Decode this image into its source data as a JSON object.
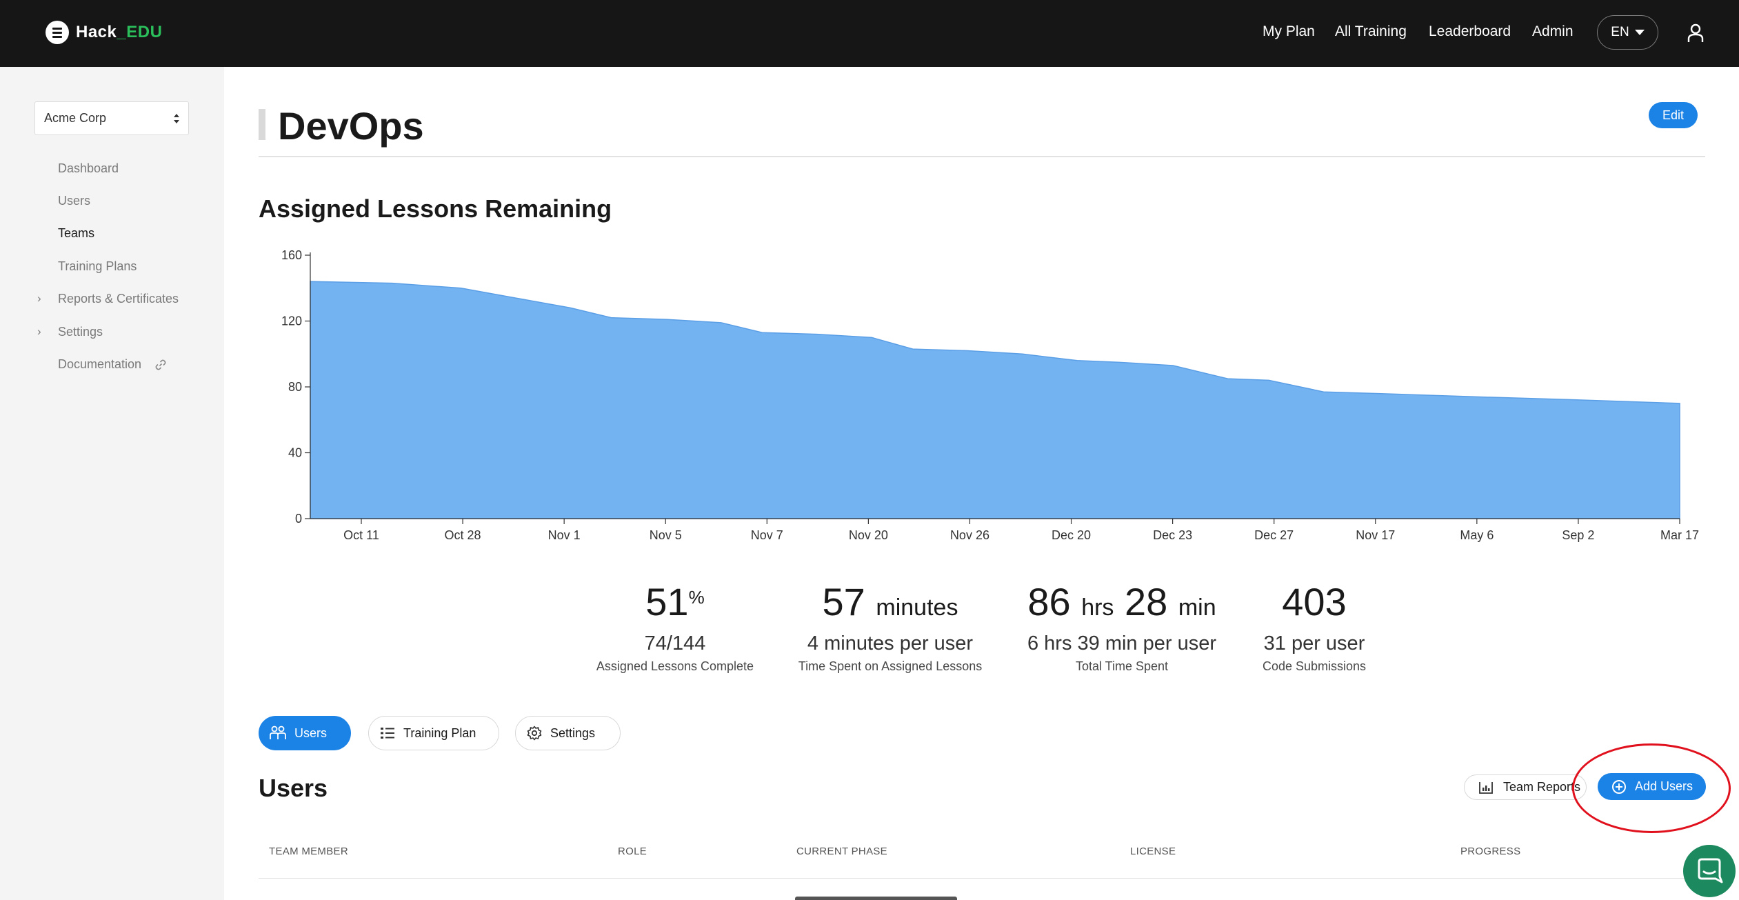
{
  "brand": {
    "name_main": "Hack",
    "name_accent": "_EDU"
  },
  "topnav": {
    "links": [
      "My Plan",
      "All Training",
      "Leaderboard",
      "Admin"
    ],
    "language": "EN"
  },
  "sidebar": {
    "org_select": "Acme Corp",
    "items": [
      {
        "label": "Dashboard"
      },
      {
        "label": "Users"
      },
      {
        "label": "Teams",
        "active": true
      },
      {
        "label": "Training Plans"
      },
      {
        "label": "Reports & Certificates",
        "expandable": true
      },
      {
        "label": "Settings",
        "expandable": true
      },
      {
        "label": "Documentation",
        "external": true
      }
    ]
  },
  "page": {
    "title": "DevOps",
    "edit_label": "Edit"
  },
  "chart_section": {
    "title": "Assigned Lessons Remaining"
  },
  "chart_data": {
    "type": "area",
    "title": "Assigned Lessons Remaining",
    "color": "#74b3f2",
    "ylim": [
      0,
      160
    ],
    "yticks": [
      0,
      40,
      80,
      120,
      160
    ],
    "xticks": [
      "Oct 11",
      "Oct 28",
      "Nov 1",
      "Nov 5",
      "Nov 7",
      "Nov 20",
      "Nov 26",
      "Dec 20",
      "Dec 23",
      "Dec 27",
      "Nov 17",
      "May 6",
      "Sep 2",
      "Mar 17"
    ],
    "points": [
      {
        "x": 0.0,
        "y": 144
      },
      {
        "x": 0.06,
        "y": 143
      },
      {
        "x": 0.11,
        "y": 140
      },
      {
        "x": 0.15,
        "y": 134
      },
      {
        "x": 0.19,
        "y": 128
      },
      {
        "x": 0.22,
        "y": 122
      },
      {
        "x": 0.26,
        "y": 121
      },
      {
        "x": 0.3,
        "y": 119
      },
      {
        "x": 0.33,
        "y": 113
      },
      {
        "x": 0.37,
        "y": 112
      },
      {
        "x": 0.41,
        "y": 110
      },
      {
        "x": 0.44,
        "y": 103
      },
      {
        "x": 0.48,
        "y": 102
      },
      {
        "x": 0.52,
        "y": 100
      },
      {
        "x": 0.56,
        "y": 96
      },
      {
        "x": 0.59,
        "y": 95
      },
      {
        "x": 0.63,
        "y": 93
      },
      {
        "x": 0.67,
        "y": 85
      },
      {
        "x": 0.7,
        "y": 84
      },
      {
        "x": 0.74,
        "y": 77
      },
      {
        "x": 0.78,
        "y": 76
      },
      {
        "x": 0.85,
        "y": 74
      },
      {
        "x": 0.93,
        "y": 72
      },
      {
        "x": 1.0,
        "y": 70
      }
    ]
  },
  "stats": [
    {
      "value": "51",
      "unit": "%",
      "sub": "74/144",
      "caption": "Assigned Lessons Complete"
    },
    {
      "value": "57",
      "unit": "minutes",
      "sub": "4 minutes per user",
      "caption": "Time Spent on Assigned Lessons"
    },
    {
      "value_a": "86",
      "unit_a": "hrs",
      "value_b": "28",
      "unit_b": "min",
      "sub": "6 hrs 39 min per user",
      "caption": "Total Time Spent"
    },
    {
      "value": "403",
      "sub": "31 per user",
      "caption": "Code Submissions"
    }
  ],
  "tabs": [
    {
      "label": "Users",
      "active": true
    },
    {
      "label": "Training Plan"
    },
    {
      "label": "Settings"
    }
  ],
  "users_section": {
    "title": "Users",
    "team_reports_label": "Team Reports",
    "add_users_label": "Add Users",
    "columns": [
      "TEAM MEMBER",
      "ROLE",
      "CURRENT PHASE",
      "LICENSE",
      "PROGRESS"
    ]
  },
  "colors": {
    "accent": "#1b82e6",
    "topbar": "#161616",
    "brand_accent": "#2bbf5c",
    "highlight": "#e0101d",
    "chat": "#1c8a5e"
  }
}
